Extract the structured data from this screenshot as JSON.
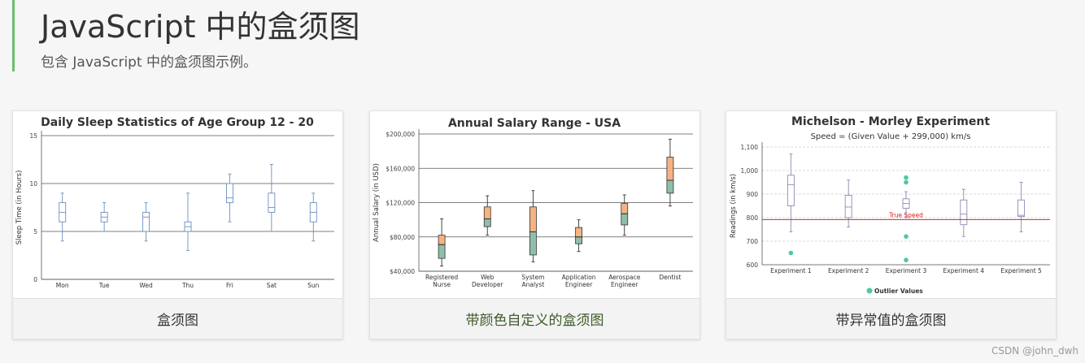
{
  "page": {
    "title": "JavaScript 中的盒须图",
    "subtitle": "包含 JavaScript 中的盒须图示例。",
    "watermark": "CSDN @john_dwh"
  },
  "cards": [
    {
      "caption": "盒须图"
    },
    {
      "caption": "带颜色自定义的盒须图"
    },
    {
      "caption": "带异常值的盒须图"
    }
  ],
  "colors": {
    "accent_bar": "#6abf69",
    "box1": "#6d8fbf",
    "box2_upper": "#f5b382",
    "box2_lower": "#8fbfaa",
    "box3": "#8c8cb5",
    "outlier": "#4dc99a",
    "true_speed": "#e02020"
  },
  "chart_data": [
    {
      "type": "box",
      "title": "Daily Sleep Statistics of Age Group 12 - 20",
      "ylabel": "Sleep Time (in Hours)",
      "ylim": [
        0,
        15
      ],
      "yticks": [
        "0",
        "5",
        "10",
        "15"
      ],
      "categories": [
        "Mon",
        "Tue",
        "Wed",
        "Thu",
        "Fri",
        "Sat",
        "Sun"
      ],
      "boxes": [
        [
          4,
          6,
          7,
          8,
          9
        ],
        [
          5,
          6,
          6.5,
          7,
          8
        ],
        [
          4,
          5,
          6.5,
          7,
          8
        ],
        [
          3,
          5,
          5.5,
          6,
          9
        ],
        [
          6,
          8,
          8.5,
          10,
          11
        ],
        [
          5,
          7,
          7.5,
          9,
          12
        ],
        [
          4,
          6,
          7,
          8,
          9
        ]
      ]
    },
    {
      "type": "box",
      "title": "Annual Salary Range - USA",
      "ylabel": "Annual Salary (in USD)",
      "ylim": [
        40000,
        200000
      ],
      "yticks": [
        "$40,000",
        "$80,000",
        "$120,000",
        "$160,000",
        "$200,000"
      ],
      "categories": [
        [
          "Registered",
          "Nurse"
        ],
        [
          "Web",
          "Developer"
        ],
        [
          "System",
          "Analyst"
        ],
        [
          "Application",
          "Engineer"
        ],
        [
          "Aerospace",
          "Engineer"
        ],
        [
          "Dentist"
        ]
      ],
      "boxes": [
        [
          46000,
          55000,
          71000,
          82000,
          101000
        ],
        [
          82000,
          92000,
          101000,
          115000,
          128000
        ],
        [
          51000,
          59000,
          86000,
          115000,
          134000
        ],
        [
          63000,
          72000,
          80000,
          91000,
          100000
        ],
        [
          82000,
          94000,
          107000,
          119000,
          129000
        ],
        [
          116000,
          131000,
          146000,
          173000,
          194000
        ]
      ]
    },
    {
      "type": "box",
      "title": "Michelson - Morley Experiment",
      "subtitle": "Speed = (Given Value + 299,000) km/s",
      "ylabel": "Readings (in km/s)",
      "ylim": [
        600,
        1100
      ],
      "yticks": [
        "600",
        "700",
        "800",
        "900",
        "1,000",
        "1,100"
      ],
      "categories": [
        "Experiment 1",
        "Experiment 2",
        "Experiment 3",
        "Experiment 4",
        "Experiment 5"
      ],
      "boxes": [
        [
          740,
          850,
          940,
          980,
          1070
        ],
        [
          760,
          800,
          845,
          895,
          960
        ],
        [
          800,
          840,
          860,
          880,
          910
        ],
        [
          720,
          770,
          815,
          875,
          920
        ],
        [
          740,
          805,
          810,
          875,
          950
        ]
      ],
      "outliers": [
        [
          0,
          650
        ],
        [
          2,
          970
        ],
        [
          2,
          950
        ],
        [
          2,
          720
        ],
        [
          2,
          620
        ]
      ],
      "reference_line": {
        "value": 792,
        "label": "True Speed"
      },
      "legend": "Outlier Values"
    }
  ]
}
